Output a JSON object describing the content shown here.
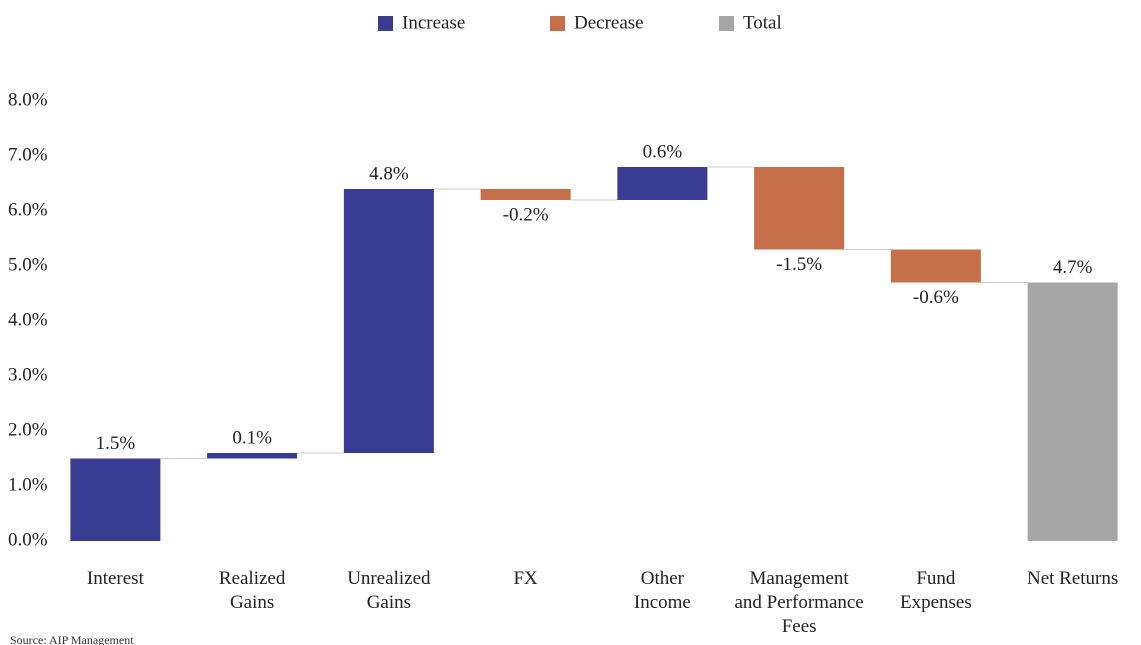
{
  "chart_data": {
    "type": "waterfall",
    "categories": [
      "Interest",
      "Realized\nGains",
      "Unrealized\nGains",
      "FX",
      "Other\nIncome",
      "Management\nand Performance\nFees",
      "Fund\nExpenses",
      "Net Returns"
    ],
    "values": [
      1.5,
      0.1,
      4.8,
      -0.2,
      0.6,
      -1.5,
      -0.6,
      4.7
    ],
    "value_labels": [
      "1.5%",
      "0.1%",
      "4.8%",
      "-0.2%",
      "0.6%",
      "-1.5%",
      "-0.6%",
      "4.7%"
    ],
    "is_total": [
      false,
      false,
      false,
      false,
      false,
      false,
      false,
      true
    ],
    "legend": [
      {
        "name": "Increase",
        "color": "#383d93"
      },
      {
        "name": "Decrease",
        "color": "#c6704a"
      },
      {
        "name": "Total",
        "color": "#a6a6a6"
      }
    ],
    "ylim": [
      0,
      8.2
    ],
    "yticks": [
      {
        "value": 0,
        "label": "0.0%"
      },
      {
        "value": 1,
        "label": "1.0%"
      },
      {
        "value": 2,
        "label": "2.0%"
      },
      {
        "value": 3,
        "label": "3.0%"
      },
      {
        "value": 4,
        "label": "4.0%"
      },
      {
        "value": 5,
        "label": "5.0%"
      },
      {
        "value": 6,
        "label": "6.0%"
      },
      {
        "value": 7,
        "label": "7.0%"
      },
      {
        "value": 8,
        "label": "8.0%"
      }
    ],
    "grid": false,
    "source": "Source: AIP Management"
  }
}
